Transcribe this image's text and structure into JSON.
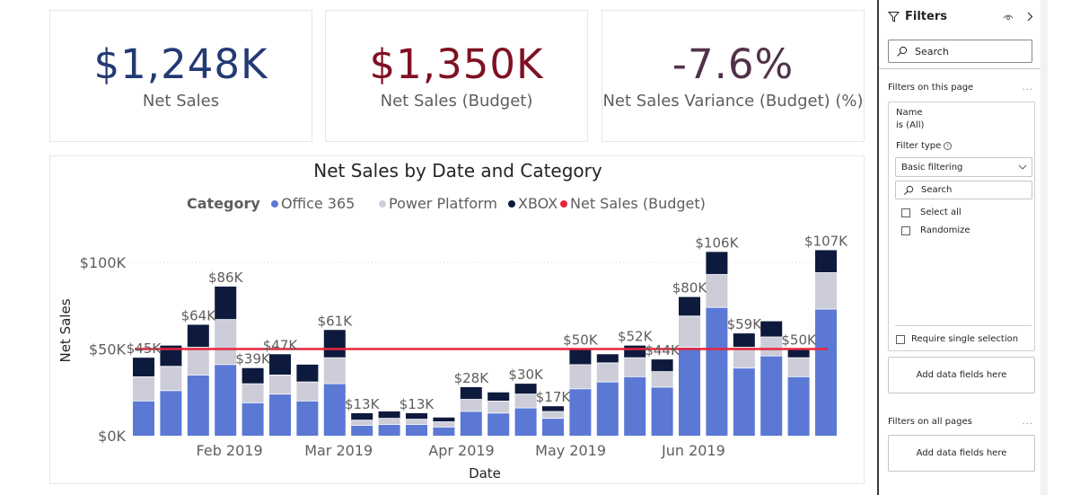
{
  "kpis": [
    {
      "value": "$1,248K",
      "label": "Net Sales",
      "color": "#243a73"
    },
    {
      "value": "$1,350K",
      "label": "Net Sales (Budget)",
      "color": "#7f1123"
    },
    {
      "value": "-7.6%",
      "label": "Net Sales Variance (Budget) (%)",
      "color": "#51324a"
    }
  ],
  "filters_pane": {
    "title": "Filters",
    "icons": [
      "funnel-icon",
      "eye-icon",
      "chevron-right-icon"
    ],
    "search_placeholder": "Search",
    "page_section_label": "Filters on this page",
    "more_label": "...",
    "filter_card": {
      "field": "Name",
      "condition": "is (All)",
      "filter_type_label": "Filter type",
      "filter_type_value": "Basic filtering",
      "search_placeholder": "Search",
      "options": [
        {
          "label": "Select all",
          "checked": false
        },
        {
          "label": "Randomize",
          "checked": false
        }
      ],
      "require_single_label": "Require single selection"
    },
    "add_fields_label": "Add data fields here",
    "all_pages_label": "Filters on all pages",
    "add_fields_all_label": "Add data fields here"
  },
  "chart_data": {
    "type": "bar",
    "stacked": true,
    "title": "Net Sales by Date and Category",
    "xlabel": "Date",
    "ylabel": "Net Sales",
    "ylim": [
      0,
      110
    ],
    "yticks": [
      0,
      50,
      100
    ],
    "ytick_labels": [
      "$0K",
      "$50K",
      "$100K"
    ],
    "xtick_labels": [
      {
        "label": "Feb 2019",
        "at_index": 4
      },
      {
        "label": "Mar 2019",
        "at_index": 8
      },
      {
        "label": "Apr 2019",
        "at_index": 12.5
      },
      {
        "label": "May 2019",
        "at_index": 16.5
      },
      {
        "label": "Jun 2019",
        "at_index": 21
      }
    ],
    "grid": true,
    "legend": {
      "title": "Category",
      "placement": "top-center"
    },
    "categories": [
      "W1",
      "W2",
      "W3",
      "W4",
      "W5",
      "W6",
      "W7",
      "W8",
      "W9",
      "W10",
      "W11",
      "W12",
      "W13",
      "W14",
      "W15",
      "W16",
      "W17",
      "W18",
      "W19",
      "W20",
      "W21",
      "W22",
      "W23",
      "W24",
      "W25",
      "W26"
    ],
    "series": [
      {
        "name": "Office 365",
        "color": "#5b78d5",
        "values": [
          20,
          26,
          35,
          41,
          19,
          24,
          20,
          30,
          6,
          6.5,
          6.5,
          5,
          14,
          13,
          16,
          10,
          27,
          31,
          34,
          28,
          51,
          74,
          39,
          46,
          34,
          73
        ]
      },
      {
        "name": "Power Platform",
        "color": "#cdcdd9",
        "values": [
          14,
          14,
          16,
          26,
          11,
          11,
          11,
          15,
          3,
          3.5,
          3,
          3,
          7,
          7,
          8,
          4,
          14,
          11,
          11,
          9,
          18,
          19,
          12,
          11,
          11,
          21
        ]
      },
      {
        "name": "XBOX",
        "color": "#0d1a3d",
        "values": [
          11,
          12,
          13,
          19,
          9,
          12,
          10,
          16,
          4,
          4,
          3.5,
          2.5,
          7,
          5,
          6,
          3,
          9,
          5,
          7,
          7,
          11,
          13,
          8,
          9,
          5,
          13
        ]
      }
    ],
    "line_series": {
      "name": "Net Sales (Budget)",
      "color": "#e8263c",
      "value": 50
    },
    "data_labels": [
      {
        "index": 0,
        "text": "$45K"
      },
      {
        "index": 2,
        "text": "$64K"
      },
      {
        "index": 3,
        "text": "$86K"
      },
      {
        "index": 4,
        "text": "$39K"
      },
      {
        "index": 5,
        "text": "$47K"
      },
      {
        "index": 7,
        "text": "$61K"
      },
      {
        "index": 8,
        "text": "$13K"
      },
      {
        "index": 10,
        "text": "$13K"
      },
      {
        "index": 12,
        "text": "$28K"
      },
      {
        "index": 14,
        "text": "$30K"
      },
      {
        "index": 15,
        "text": "$17K"
      },
      {
        "index": 16,
        "text": "$50K"
      },
      {
        "index": 18,
        "text": "$52K"
      },
      {
        "index": 19,
        "text": "$44K"
      },
      {
        "index": 20,
        "text": "$80K"
      },
      {
        "index": 21,
        "text": "$106K"
      },
      {
        "index": 22,
        "text": "$59K"
      },
      {
        "index": 24,
        "text": "$50K"
      },
      {
        "index": 25,
        "text": "$107K"
      }
    ]
  }
}
